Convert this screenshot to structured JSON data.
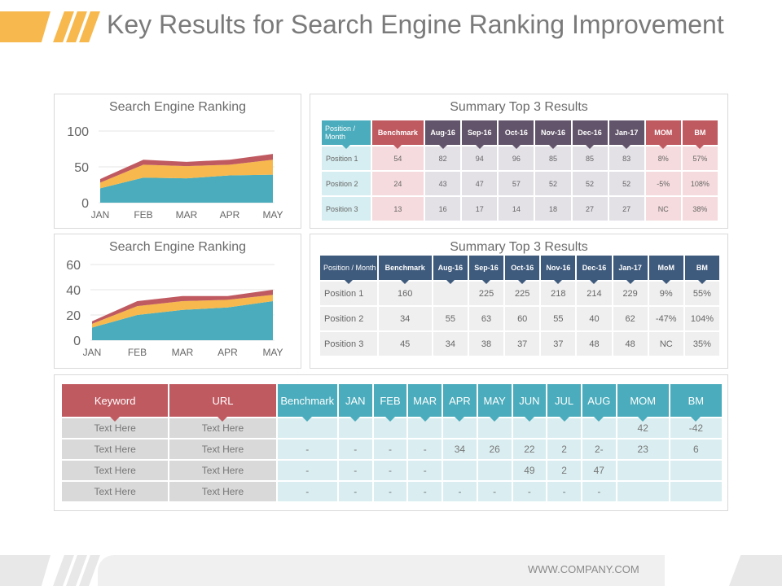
{
  "title": "Key Results for Search Engine Ranking Improvement",
  "footer_url": "WWW.COMPANY.COM",
  "colors": {
    "teal": "#4aacbc",
    "orange": "#f7b84d",
    "red": "#c05a61",
    "dark_purple": "#62546a",
    "navy": "#3e5a7c"
  },
  "chart_data": [
    {
      "type": "area",
      "title": "Search Engine Ranking",
      "categories": [
        "JAN",
        "FEB",
        "MAR",
        "APR",
        "MAY"
      ],
      "ylim": [
        0,
        100
      ],
      "yticks": [
        "100",
        "50",
        "0"
      ],
      "stacked": true,
      "series": [
        {
          "color": "#4aacbc",
          "values": [
            20,
            35,
            34,
            38,
            39
          ]
        },
        {
          "color": "#f7b84d",
          "values": [
            8,
            18,
            17,
            15,
            21
          ]
        },
        {
          "color": "#c05a61",
          "values": [
            5,
            7,
            6,
            7,
            8
          ]
        }
      ]
    },
    {
      "type": "area",
      "title": "Search Engine Ranking",
      "categories": [
        "JAN",
        "FEB",
        "MAR",
        "APR",
        "MAY"
      ],
      "ylim": [
        0,
        60
      ],
      "yticks": [
        "60",
        "40",
        "20",
        "0"
      ],
      "stacked": true,
      "series": [
        {
          "color": "#4aacbc",
          "values": [
            10,
            20,
            24,
            26,
            31
          ]
        },
        {
          "color": "#f7b84d",
          "values": [
            3,
            7,
            7,
            6,
            5
          ]
        },
        {
          "color": "#c05a61",
          "values": [
            2,
            4,
            4,
            3,
            4
          ]
        }
      ]
    }
  ],
  "summary1": {
    "title": "Summary Top 3 Results",
    "headers": [
      "Position / Month",
      "Benchmark",
      "Aug-16",
      "Sep-16",
      "Oct-16",
      "Nov-16",
      "Dec-16",
      "Jan-17",
      "MOM",
      "BM"
    ],
    "rows": [
      [
        "Position 1",
        "54",
        "82",
        "94",
        "96",
        "85",
        "85",
        "83",
        "8%",
        "57%"
      ],
      [
        "Position 2",
        "24",
        "43",
        "47",
        "57",
        "52",
        "52",
        "52",
        "-5%",
        "108%"
      ],
      [
        "Position 3",
        "13",
        "16",
        "17",
        "14",
        "18",
        "27",
        "27",
        "NC",
        "38%"
      ]
    ]
  },
  "summary2": {
    "title": "Summary Top 3 Results",
    "headers": [
      "Position / Month",
      "Benchmark",
      "Aug-16",
      "Sep-16",
      "Oct-16",
      "Nov-16",
      "Dec-16",
      "Jan-17",
      "MoM",
      "BM"
    ],
    "rows": [
      [
        "Position 1",
        "160",
        "",
        "225",
        "225",
        "218",
        "214",
        "229",
        "9%",
        "55%"
      ],
      [
        "Position 2",
        "34",
        "55",
        "63",
        "60",
        "55",
        "40",
        "62",
        "-47%",
        "104%"
      ],
      [
        "Position 3",
        "45",
        "34",
        "38",
        "37",
        "37",
        "48",
        "48",
        "NC",
        "35%"
      ]
    ]
  },
  "keywords": {
    "headers": [
      "Keyword",
      "URL",
      "Benchmark",
      "JAN",
      "FEB",
      "MAR",
      "APR",
      "MAY",
      "JUN",
      "JUL",
      "AUG",
      "MOM",
      "BM"
    ],
    "rows": [
      [
        "Text Here",
        "Text Here",
        "",
        "",
        "",
        "",
        "",
        "",
        "",
        "",
        "",
        "42",
        "-42"
      ],
      [
        "Text Here",
        "Text Here",
        "-",
        "-",
        "-",
        "-",
        "34",
        "26",
        "22",
        "2",
        "2-",
        "23",
        "6"
      ],
      [
        "Text Here",
        "Text Here",
        "-",
        "-",
        "-",
        "-",
        "",
        "",
        "49",
        "2",
        "47",
        "",
        ""
      ],
      [
        "Text Here",
        "Text Here",
        "-",
        "-",
        "-",
        "-",
        "-",
        "-",
        "-",
        "-",
        "-",
        "",
        ""
      ]
    ]
  }
}
